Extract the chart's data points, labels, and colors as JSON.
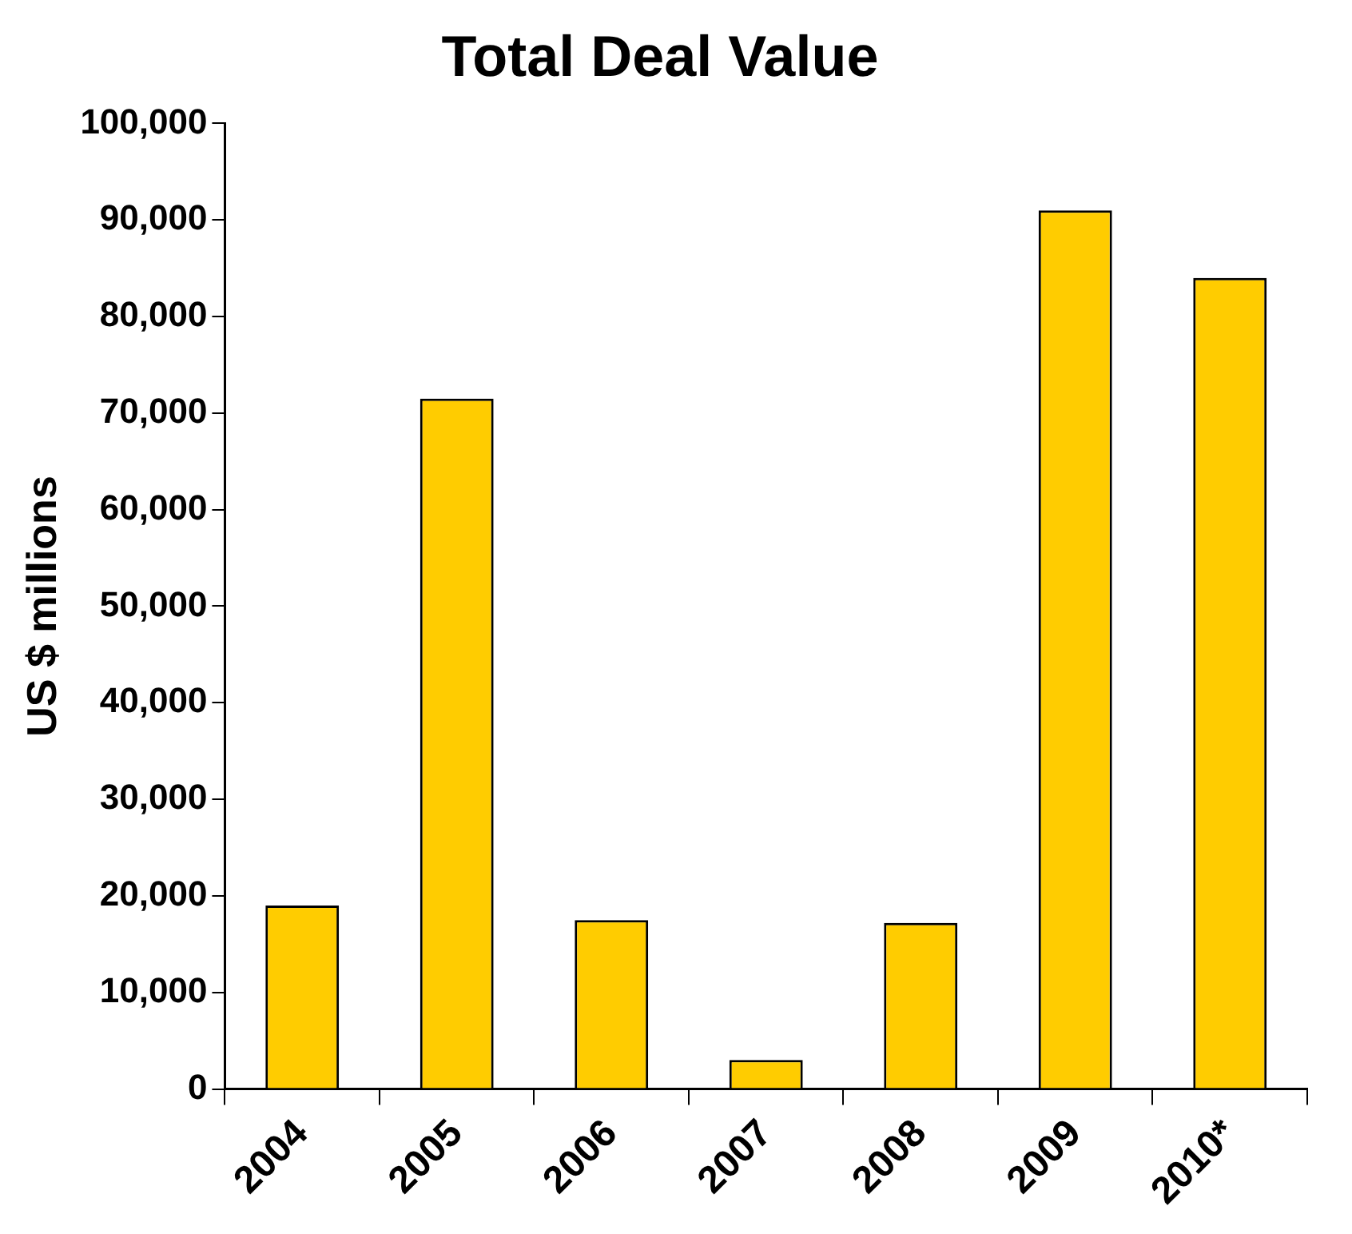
{
  "chart_data": {
    "type": "bar",
    "title": "Total Deal Value",
    "ylabel": "US $ millions",
    "categories": [
      "2004",
      "2005",
      "2006",
      "2007",
      "2008",
      "2009",
      "2010*"
    ],
    "values": [
      19000,
      71500,
      17500,
      3000,
      17200,
      91000,
      84000
    ],
    "color": "#ffcc00",
    "ylim": [
      0,
      100000
    ],
    "yticks": [
      0,
      {
        "value": 10000,
        "label": "10,000"
      },
      {
        "value": 20000,
        "label": "20,000"
      },
      {
        "value": 30000,
        "label": "30,000"
      },
      {
        "value": 40000,
        "label": "40,000"
      },
      {
        "value": 50000,
        "label": "50,000"
      },
      {
        "value": 60000,
        "label": "60,000"
      },
      {
        "value": 70000,
        "label": "70,000"
      },
      {
        "value": 80000,
        "label": "80,000"
      },
      {
        "value": 90000,
        "label": "90,000"
      },
      {
        "value": 100000,
        "label": "100,000"
      }
    ]
  }
}
